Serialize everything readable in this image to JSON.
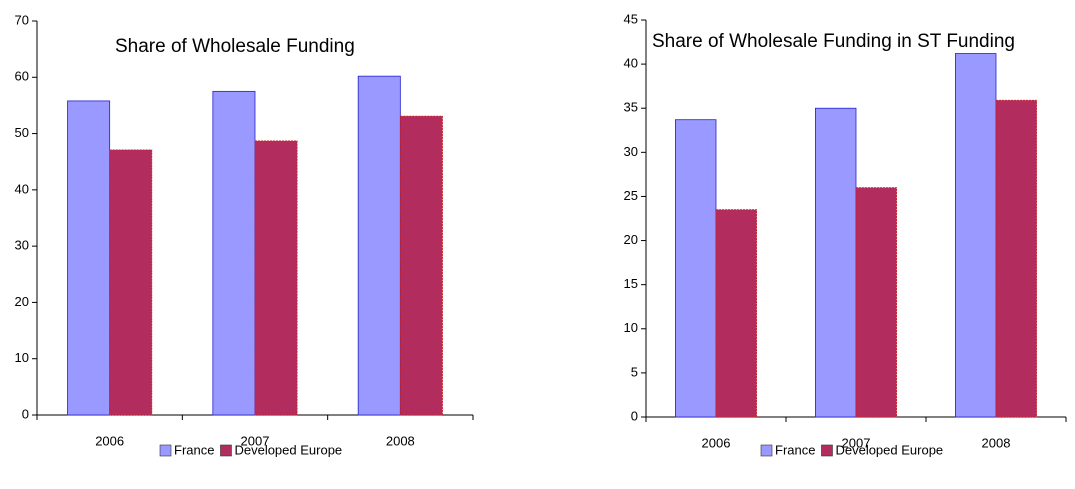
{
  "chart_data": [
    {
      "type": "bar",
      "title": "Share of Wholesale Funding",
      "categories": [
        "2006",
        "2007",
        "2008"
      ],
      "series": [
        {
          "name": "France",
          "color": "#9999ff",
          "values": [
            55.8,
            57.5,
            60.2
          ]
        },
        {
          "name": "Developed Europe",
          "color": "#b22c5e",
          "values": [
            47.1,
            48.7,
            53.1
          ]
        }
      ],
      "ylim": [
        0,
        70
      ],
      "yticks": [
        0,
        10,
        20,
        30,
        40,
        50,
        60,
        70
      ],
      "grid": false,
      "legend": "bottom"
    },
    {
      "type": "bar",
      "title": "Share of Wholesale Funding in ST Funding",
      "categories": [
        "2006",
        "2007",
        "2008"
      ],
      "series": [
        {
          "name": "France",
          "color": "#9999ff",
          "values": [
            33.7,
            35.0,
            41.2
          ]
        },
        {
          "name": "Developed Europe",
          "color": "#b22c5e",
          "values": [
            23.5,
            26.0,
            35.9
          ]
        }
      ],
      "ylim": [
        0,
        45
      ],
      "yticks": [
        0,
        5,
        10,
        15,
        20,
        25,
        30,
        35,
        40,
        45
      ],
      "grid": false,
      "legend": "bottom"
    }
  ]
}
